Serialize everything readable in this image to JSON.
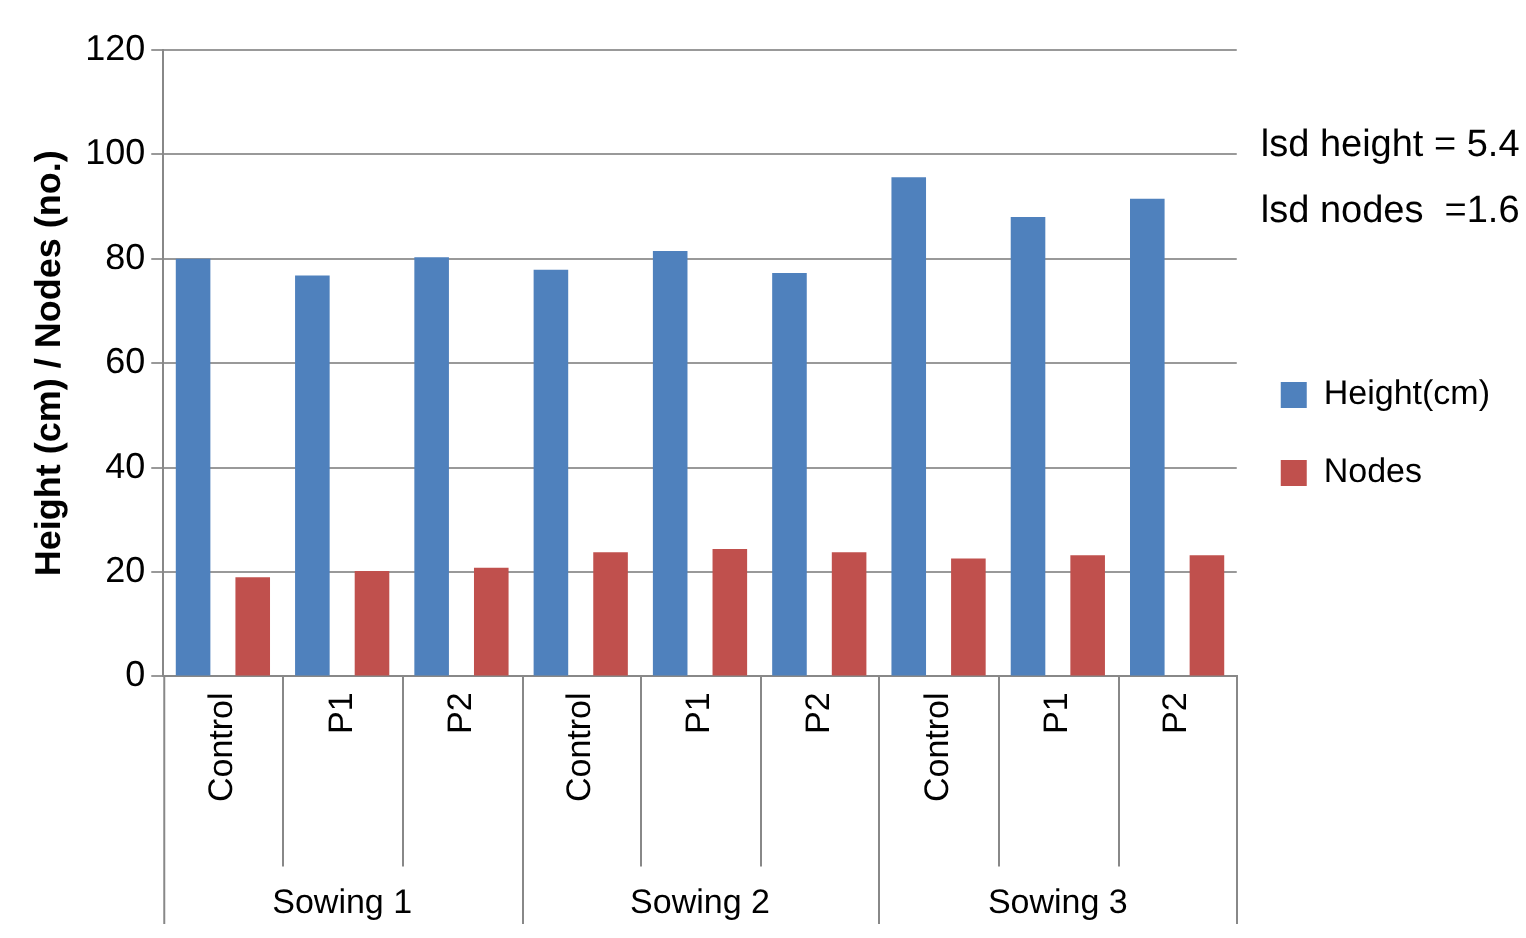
{
  "chart_data": {
    "type": "bar",
    "ylabel": "Height (cm) / Nodes (no.)",
    "categories": [
      "Control",
      "P1",
      "P2",
      "Control",
      "P1",
      "P2",
      "Control",
      "P1",
      "P2"
    ],
    "series": [
      {
        "name": "Height(cm)",
        "color": "#4f81bd",
        "values": [
          80,
          76.8,
          80.3,
          77.9,
          81.5,
          77.3,
          95.6,
          88,
          91.5
        ]
      },
      {
        "name": "Nodes",
        "color": "#c0504d",
        "values": [
          19,
          20.2,
          20.8,
          23.8,
          24.4,
          23.8,
          22.6,
          23.2,
          23.2
        ]
      }
    ],
    "ylim": [
      0,
      120
    ],
    "yticks": [
      0,
      20,
      40,
      60,
      80,
      100,
      120
    ],
    "grid": "y",
    "legend": "right",
    "annotations": [
      "lsd height = 5.4",
      "lsd nodes  =1.6",
      "Sowing 1",
      "Sowing 2",
      "Sowing 3"
    ]
  }
}
